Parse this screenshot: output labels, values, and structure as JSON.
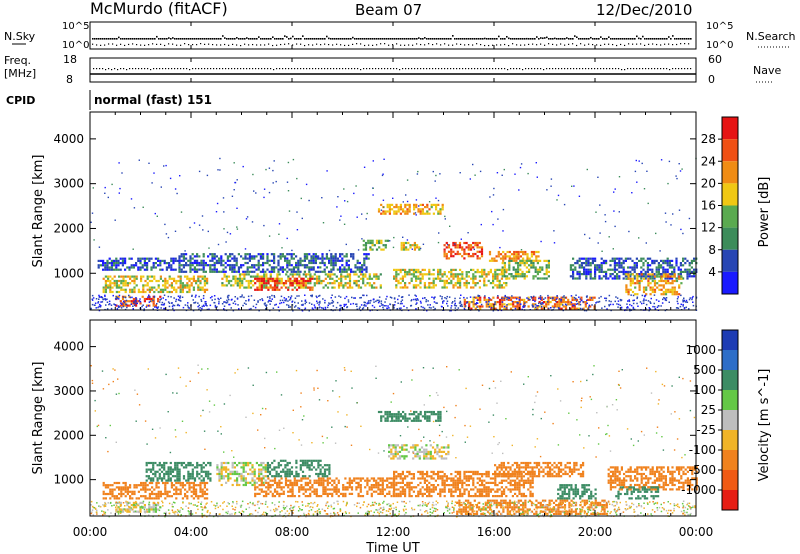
{
  "header": {
    "station": "McMurdo (fitACF)",
    "beam": "Beam 07",
    "date": "12/Dec/2010"
  },
  "noise_panel": {
    "left_label": "N.Sky",
    "left_ticks": [
      "10^5",
      "10^0"
    ],
    "right_label": "N.Search",
    "right_ticks": [
      "10^5",
      "10^0"
    ]
  },
  "freq_panel": {
    "left_label_1": "Freq.",
    "left_label_2": "[MHz]",
    "left_ticks": [
      "18",
      "8"
    ],
    "right_label": "Nave",
    "right_ticks": [
      "60",
      "0"
    ]
  },
  "cpid": {
    "label": "CPID",
    "value": "normal (fast) 151"
  },
  "x_axis": {
    "label": "Time UT",
    "ticks": [
      "00:00",
      "04:00",
      "08:00",
      "12:00",
      "16:00",
      "20:00",
      "00:00"
    ]
  },
  "colors": {
    "power_scale": [
      "#1a1aff",
      "#2846b4",
      "#3c8c5a",
      "#5aaa50",
      "#f0c814",
      "#f08c14",
      "#f05014",
      "#e61414"
    ],
    "velocity_scale": [
      "#1e3cb4",
      "#2d6ec8",
      "#3c8c64",
      "#64c846",
      "#bebebe",
      "#f0b428",
      "#f0821e",
      "#f05a14",
      "#e61e14"
    ]
  },
  "chart_data": [
    {
      "type": "heatmap",
      "title": "",
      "xlabel": "Time UT",
      "ylabel": "Slant Range [km]",
      "xlim": [
        "00:00",
        "24:00"
      ],
      "ylim": [
        180,
        4600
      ],
      "yticks": [
        "1000",
        "2000",
        "3000",
        "4000"
      ],
      "colorbar": {
        "label": "Power [dB]",
        "ticks": [
          "4",
          "8",
          "12",
          "16",
          "20",
          "24",
          "28"
        ],
        "range": [
          0,
          32
        ]
      },
      "echo_regions": [
        {
          "t_start": 0.5,
          "t_end": 4.6,
          "range_min": 600,
          "range_max": 950,
          "power_db": 18
        },
        {
          "t_start": 1.0,
          "t_end": 2.8,
          "range_min": 300,
          "range_max": 500,
          "power_db": 26
        },
        {
          "t_start": 0.3,
          "t_end": 3.5,
          "range_min": 1100,
          "range_max": 1350,
          "power_db": 6
        },
        {
          "t_start": 5.2,
          "t_end": 11.5,
          "range_min": 700,
          "range_max": 1000,
          "power_db": 16
        },
        {
          "t_start": 6.5,
          "t_end": 8.8,
          "range_min": 650,
          "range_max": 900,
          "power_db": 28
        },
        {
          "t_start": 3.5,
          "t_end": 11.0,
          "range_min": 1050,
          "range_max": 1450,
          "power_db": 7
        },
        {
          "t_start": 11.4,
          "t_end": 14.0,
          "range_min": 2350,
          "range_max": 2550,
          "power_db": 20
        },
        {
          "t_start": 10.8,
          "t_end": 11.8,
          "range_min": 1550,
          "range_max": 1750,
          "power_db": 14
        },
        {
          "t_start": 12.3,
          "t_end": 13.0,
          "range_min": 1550,
          "range_max": 1700,
          "power_db": 18
        },
        {
          "t_start": 14.0,
          "t_end": 15.5,
          "range_min": 1350,
          "range_max": 1700,
          "power_db": 26
        },
        {
          "t_start": 12.0,
          "t_end": 16.5,
          "range_min": 700,
          "range_max": 1100,
          "power_db": 17
        },
        {
          "t_start": 15.8,
          "t_end": 17.8,
          "range_min": 1300,
          "range_max": 1500,
          "power_db": 22
        },
        {
          "t_start": 16.3,
          "t_end": 18.2,
          "range_min": 900,
          "range_max": 1300,
          "power_db": 14
        },
        {
          "t_start": 14.8,
          "t_end": 20.0,
          "range_min": 200,
          "range_max": 480,
          "power_db": 24
        },
        {
          "t_start": 19.0,
          "t_end": 24.0,
          "range_min": 900,
          "range_max": 1350,
          "power_db": 7
        },
        {
          "t_start": 21.2,
          "t_end": 23.4,
          "range_min": 550,
          "range_max": 1000,
          "power_db": 20
        }
      ]
    },
    {
      "type": "heatmap",
      "title": "",
      "xlabel": "Time UT",
      "ylabel": "Slant Range [km]",
      "xlim": [
        "00:00",
        "24:00"
      ],
      "ylim": [
        180,
        4600
      ],
      "yticks": [
        "1000",
        "2000",
        "3000",
        "4000"
      ],
      "colorbar": {
        "label": "Velocity [m s^-1]",
        "ticks": [
          "1000",
          "500",
          "100",
          "25",
          "-25",
          "-100",
          "-500",
          "-1000"
        ]
      },
      "echo_regions": [
        {
          "t_start": 0.5,
          "t_end": 4.6,
          "range_min": 600,
          "range_max": 950,
          "velocity": -300
        },
        {
          "t_start": 1.0,
          "t_end": 2.8,
          "range_min": 300,
          "range_max": 500,
          "velocity": 0
        },
        {
          "t_start": 2.2,
          "t_end": 4.8,
          "range_min": 1000,
          "range_max": 1400,
          "velocity": 250
        },
        {
          "t_start": 5.0,
          "t_end": 7.0,
          "range_min": 900,
          "range_max": 1400,
          "velocity": 0
        },
        {
          "t_start": 6.5,
          "t_end": 12.0,
          "range_min": 650,
          "range_max": 1050,
          "velocity": -300
        },
        {
          "t_start": 7.0,
          "t_end": 9.5,
          "range_min": 1100,
          "range_max": 1450,
          "velocity": 250
        },
        {
          "t_start": 11.4,
          "t_end": 14.0,
          "range_min": 2350,
          "range_max": 2550,
          "velocity": 250
        },
        {
          "t_start": 11.8,
          "t_end": 14.2,
          "range_min": 1500,
          "range_max": 1800,
          "velocity": 0
        },
        {
          "t_start": 12.0,
          "t_end": 17.5,
          "range_min": 650,
          "range_max": 1200,
          "velocity": -300
        },
        {
          "t_start": 16.0,
          "t_end": 19.5,
          "range_min": 1100,
          "range_max": 1400,
          "velocity": -300
        },
        {
          "t_start": 14.5,
          "t_end": 20.5,
          "range_min": 250,
          "range_max": 550,
          "velocity": -250
        },
        {
          "t_start": 18.5,
          "t_end": 20.0,
          "range_min": 600,
          "range_max": 900,
          "velocity": 250
        },
        {
          "t_start": 20.5,
          "t_end": 24.0,
          "range_min": 800,
          "range_max": 1300,
          "velocity": -250
        },
        {
          "t_start": 20.8,
          "t_end": 22.5,
          "range_min": 600,
          "range_max": 850,
          "velocity": 250
        }
      ]
    }
  ]
}
